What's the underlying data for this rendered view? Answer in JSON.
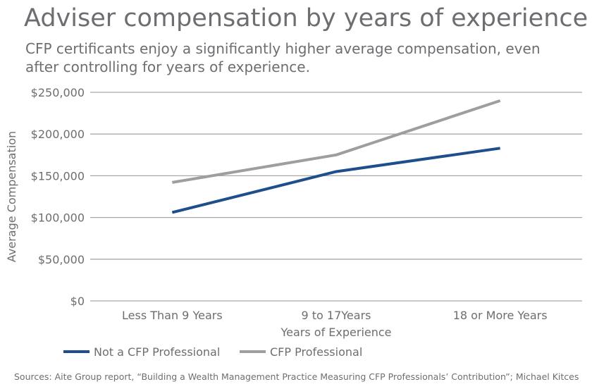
{
  "title": "Adviser compensation by years of experience",
  "subtitle": "CFP certificants enjoy a significantly higher average compensation, even after controlling for years of experience.",
  "source": "Sources: Aite Group report, “Building a Wealth Management Practice Measuring CFP Professionals’ Contribution”; Michael Kitces",
  "chart_data": {
    "type": "line",
    "categories": [
      "Less Than 9 Years",
      "9 to 17Years",
      "18 or More Years"
    ],
    "series": [
      {
        "name": "Not a CFP Professional",
        "values": [
          106000,
          155000,
          183000
        ],
        "color": "#1f4e8c"
      },
      {
        "name": "CFP Professional",
        "values": [
          142000,
          175000,
          240000
        ],
        "color": "#9d9ea0"
      }
    ],
    "xlabel": "Years of Experience",
    "ylabel": "Average Compensation",
    "ylim": [
      0,
      250000
    ],
    "yticks": [
      0,
      50000,
      100000,
      150000,
      200000,
      250000
    ],
    "ytick_labels": [
      "$0",
      "$50,000",
      "$100,000",
      "$150,000",
      "$200,000",
      "$250,000"
    ],
    "grid": true,
    "gridline_color": "#a7a9ac",
    "legend_position": "bottom-left"
  }
}
